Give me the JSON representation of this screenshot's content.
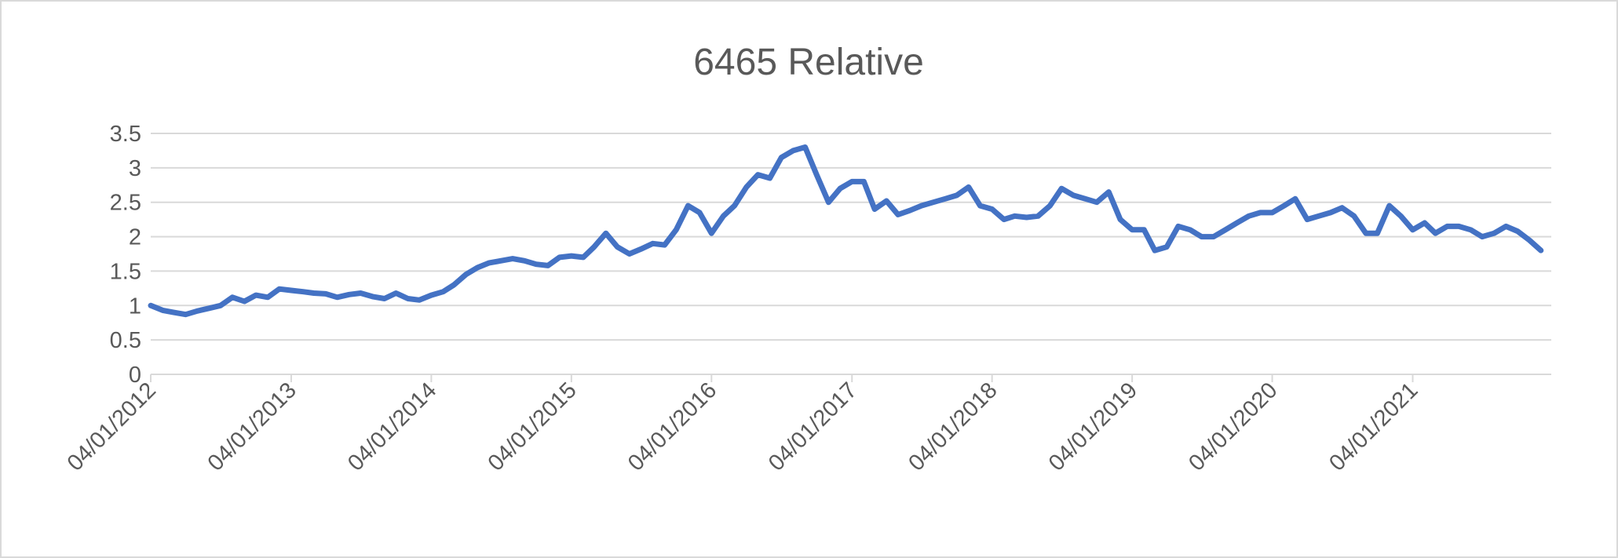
{
  "chart_data": {
    "type": "line",
    "title": "6465 Relative",
    "x": [
      "04/01/2012",
      "04/02/2012",
      "04/03/2012",
      "04/04/2012",
      "04/05/2012",
      "04/06/2012",
      "04/07/2012",
      "04/08/2012",
      "04/09/2012",
      "04/10/2012",
      "04/11/2012",
      "04/12/2012",
      "04/01/2013",
      "04/02/2013",
      "04/03/2013",
      "04/04/2013",
      "04/05/2013",
      "04/06/2013",
      "04/07/2013",
      "04/08/2013",
      "04/09/2013",
      "04/10/2013",
      "04/11/2013",
      "04/12/2013",
      "04/01/2014",
      "04/02/2014",
      "04/03/2014",
      "04/04/2014",
      "04/05/2014",
      "04/06/2014",
      "04/07/2014",
      "04/08/2014",
      "04/09/2014",
      "04/10/2014",
      "04/11/2014",
      "04/12/2014",
      "04/01/2015",
      "04/02/2015",
      "04/03/2015",
      "04/04/2015",
      "04/05/2015",
      "04/06/2015",
      "04/07/2015",
      "04/08/2015",
      "04/09/2015",
      "04/10/2015",
      "04/11/2015",
      "04/12/2015",
      "04/01/2016",
      "04/02/2016",
      "04/03/2016",
      "04/04/2016",
      "04/05/2016",
      "04/06/2016",
      "04/07/2016",
      "04/08/2016",
      "04/09/2016",
      "04/10/2016",
      "04/11/2016",
      "04/12/2016",
      "04/01/2017",
      "04/02/2017",
      "04/03/2017",
      "04/04/2017",
      "04/05/2017",
      "04/06/2017",
      "04/07/2017",
      "04/08/2017",
      "04/09/2017",
      "04/10/2017",
      "04/11/2017",
      "04/12/2017",
      "04/01/2018",
      "04/02/2018",
      "04/03/2018",
      "04/04/2018",
      "04/05/2018",
      "04/06/2018",
      "04/07/2018",
      "04/08/2018",
      "04/09/2018",
      "04/10/2018",
      "04/11/2018",
      "04/12/2018",
      "04/01/2019",
      "04/02/2019",
      "04/03/2019",
      "04/04/2019",
      "04/05/2019",
      "04/06/2019",
      "04/07/2019",
      "04/08/2019",
      "04/09/2019",
      "04/10/2019",
      "04/11/2019",
      "04/12/2019",
      "04/01/2020",
      "04/02/2020",
      "04/03/2020",
      "04/04/2020",
      "04/05/2020",
      "04/06/2020",
      "04/07/2020",
      "04/08/2020",
      "04/09/2020",
      "04/10/2020",
      "04/11/2020",
      "04/12/2020",
      "04/01/2021",
      "04/02/2021",
      "04/03/2021",
      "04/04/2021",
      "04/05/2021",
      "04/06/2021",
      "04/07/2021",
      "04/08/2021",
      "04/09/2021",
      "04/10/2021",
      "04/11/2021",
      "04/12/2021"
    ],
    "series": [
      {
        "name": "6465 Relative",
        "color": "#4472c4",
        "values": [
          1.0,
          0.93,
          0.9,
          0.87,
          0.92,
          0.96,
          1.0,
          1.12,
          1.06,
          1.15,
          1.12,
          1.24,
          1.22,
          1.2,
          1.18,
          1.17,
          1.12,
          1.16,
          1.18,
          1.13,
          1.1,
          1.18,
          1.1,
          1.08,
          1.15,
          1.2,
          1.3,
          1.45,
          1.55,
          1.62,
          1.65,
          1.68,
          1.65,
          1.6,
          1.58,
          1.7,
          1.72,
          1.7,
          1.85,
          2.05,
          1.85,
          1.75,
          1.82,
          1.9,
          1.88,
          2.1,
          2.45,
          2.35,
          2.05,
          2.3,
          2.45,
          2.72,
          2.9,
          2.85,
          3.15,
          3.25,
          3.3,
          2.9,
          2.5,
          2.7,
          2.8,
          2.8,
          2.4,
          2.52,
          2.32,
          2.38,
          2.45,
          2.5,
          2.55,
          2.6,
          2.72,
          2.45,
          2.4,
          2.25,
          2.3,
          2.28,
          2.3,
          2.45,
          2.7,
          2.6,
          2.55,
          2.5,
          2.65,
          2.25,
          2.1,
          2.1,
          1.8,
          1.85,
          2.15,
          2.1,
          2.0,
          2.0,
          2.1,
          2.2,
          2.3,
          2.35,
          2.35,
          2.45,
          2.55,
          2.25,
          2.3,
          2.35,
          2.42,
          2.3,
          2.05,
          2.05,
          2.45,
          2.3,
          2.1,
          2.2,
          2.05,
          2.15,
          2.15,
          2.1,
          2.0,
          2.05,
          2.15,
          2.08,
          1.95,
          1.8
        ]
      }
    ],
    "xlim": [
      "04/01/2012",
      "31/12/2021"
    ],
    "xticks": [
      "04/01/2012",
      "04/01/2013",
      "04/01/2014",
      "04/01/2015",
      "04/01/2016",
      "04/01/2017",
      "04/01/2018",
      "04/01/2019",
      "04/01/2020",
      "04/01/2021"
    ],
    "ylim": [
      0,
      3.5
    ],
    "yticks": [
      0,
      0.5,
      1,
      1.5,
      2,
      2.5,
      3,
      3.5
    ],
    "grid": true
  }
}
